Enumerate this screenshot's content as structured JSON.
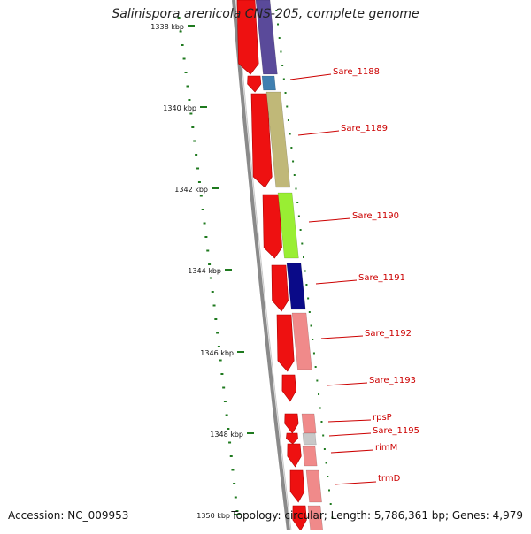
{
  "title": "Salinispora arenicola CNS-205, complete genome",
  "accession": "Accession: NC_009953",
  "summary": "Topology: circular; Length: 5,786,361 bp; Genes: 4,979",
  "ruler": {
    "labels": [
      "1338 kbp",
      "1340 kbp",
      "1342 kbp",
      "1344 kbp",
      "1346 kbp",
      "1348 kbp",
      "1350 kbp"
    ]
  },
  "genes": [
    {
      "label": "Sare_1188",
      "color": "#3f7fb0"
    },
    {
      "label": "Sare_1189",
      "color": "#c0b878"
    },
    {
      "label": "Sare_1190",
      "color": "#99ee33"
    },
    {
      "label": "Sare_1191",
      "color": "#0a0a88"
    },
    {
      "label": "Sare_1192",
      "color": "#f08a8a"
    },
    {
      "label": "Sare_1193",
      "color": null
    },
    {
      "label": "rpsP",
      "color": "#f08a8a"
    },
    {
      "label": "Sare_1195",
      "color": "#c8c8c8"
    },
    {
      "label": "rimM",
      "color": "#f08a8a"
    },
    {
      "label": "trmD",
      "color": "#f08a8a"
    }
  ],
  "colors": {
    "cds": "#ee1111",
    "label": "#cc0000",
    "backbone": "#8a8a8a",
    "gc_tick": "#1f7a1f",
    "top_partial": "#5a4a9a"
  }
}
